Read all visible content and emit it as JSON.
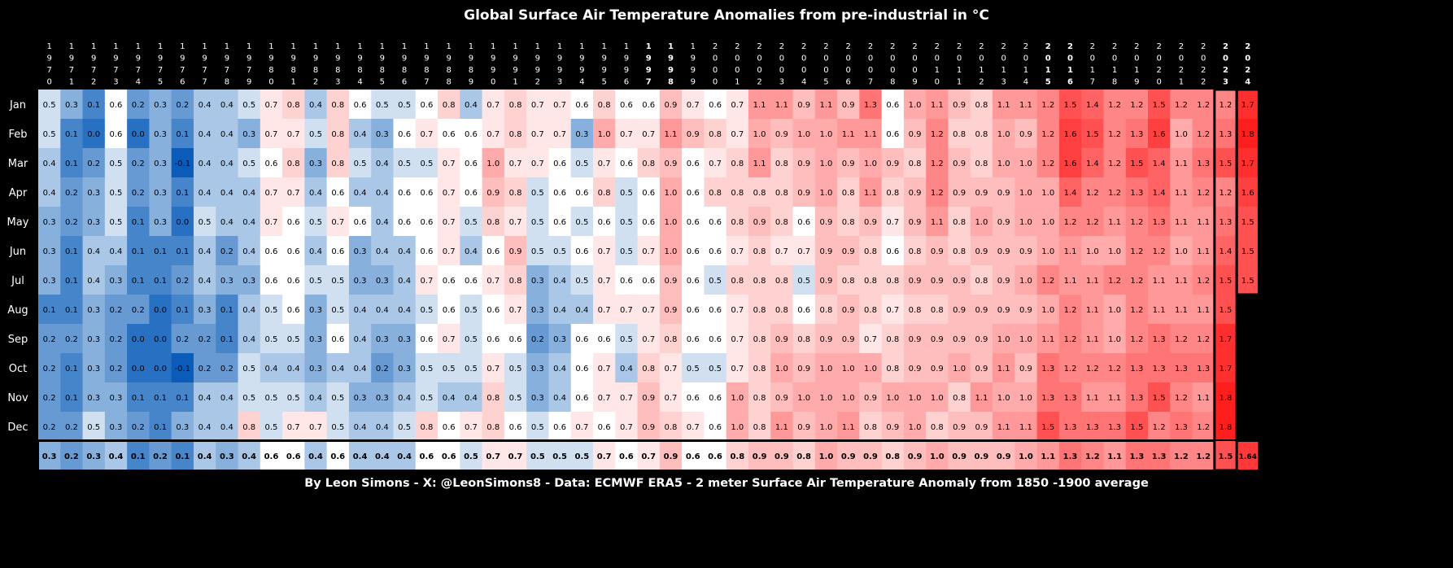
{
  "chart_data": {
    "type": "heatmap",
    "title": "Global Surface Air Temperature Anomalies from pre-industrial in °C",
    "footer": "By Leon Simons - X: @LeonSimons8 - Data: ECMWF ERA5 - 2 meter Surface Air Temperature Anomaly from 1850 -1900 average",
    "years": [
      "1970",
      "1971",
      "1972",
      "1973",
      "1974",
      "1975",
      "1976",
      "1977",
      "1978",
      "1979",
      "1980",
      "1981",
      "1982",
      "1983",
      "1984",
      "1985",
      "1986",
      "1987",
      "1988",
      "1989",
      "1990",
      "1991",
      "1992",
      "1993",
      "1994",
      "1995",
      "1996",
      "1997",
      "1998",
      "1999",
      "2000",
      "2001",
      "2002",
      "2003",
      "2004",
      "2005",
      "2006",
      "2007",
      "2008",
      "2009",
      "2010",
      "2011",
      "2012",
      "2013",
      "2014",
      "2015",
      "2016",
      "2017",
      "2018",
      "2019",
      "2020",
      "2021",
      "2022",
      "2023",
      "2024"
    ],
    "bold_years": [
      "1997",
      "1998",
      "2015",
      "2016",
      "2023",
      "2024"
    ],
    "months": [
      "Jan",
      "Feb",
      "Mar",
      "Apr",
      "May",
      "Jun",
      "Jul",
      "Aug",
      "Sep",
      "Oct",
      "Nov",
      "Dec"
    ],
    "values": [
      [
        "0.5",
        "0.3",
        "0.1",
        "0.6",
        "0.2",
        "0.3",
        "0.2",
        "0.4",
        "0.4",
        "0.5",
        "0.7",
        "0.8",
        "0.4",
        "0.8",
        "0.6",
        "0.5",
        "0.5",
        "0.6",
        "0.8",
        "0.4",
        "0.7",
        "0.8",
        "0.7",
        "0.7",
        "0.6",
        "0.8",
        "0.6",
        "0.6",
        "0.9",
        "0.7",
        "0.6",
        "0.7",
        "1.1",
        "1.1",
        "0.9",
        "1.1",
        "0.9",
        "1.3",
        "0.6",
        "1.0",
        "1.1",
        "0.9",
        "0.8",
        "1.1",
        "1.1",
        "1.2",
        "1.5",
        "1.4",
        "1.2",
        "1.2",
        "1.5",
        "1.2",
        "1.2",
        "1.2",
        "1.7"
      ],
      [
        "0.5",
        "0.1",
        "0.0",
        "0.6",
        "0.0",
        "0.3",
        "0.1",
        "0.4",
        "0.4",
        "0.3",
        "0.7",
        "0.7",
        "0.5",
        "0.8",
        "0.4",
        "0.3",
        "0.6",
        "0.7",
        "0.6",
        "0.6",
        "0.7",
        "0.8",
        "0.7",
        "0.7",
        "0.3",
        "1.0",
        "0.7",
        "0.7",
        "1.1",
        "0.9",
        "0.8",
        "0.7",
        "1.0",
        "0.9",
        "1.0",
        "1.0",
        "1.1",
        "1.1",
        "0.6",
        "0.9",
        "1.2",
        "0.8",
        "0.8",
        "1.0",
        "0.9",
        "1.2",
        "1.6",
        "1.5",
        "1.2",
        "1.3",
        "1.6",
        "1.0",
        "1.2",
        "1.3",
        "1.8"
      ],
      [
        "0.4",
        "0.1",
        "0.2",
        "0.5",
        "0.2",
        "0.3",
        "-0.1",
        "0.4",
        "0.4",
        "0.5",
        "0.6",
        "0.8",
        "0.3",
        "0.8",
        "0.5",
        "0.4",
        "0.5",
        "0.5",
        "0.7",
        "0.6",
        "1.0",
        "0.7",
        "0.7",
        "0.6",
        "0.5",
        "0.7",
        "0.6",
        "0.8",
        "0.9",
        "0.6",
        "0.7",
        "0.8",
        "1.1",
        "0.8",
        "0.9",
        "1.0",
        "0.9",
        "1.0",
        "0.9",
        "0.8",
        "1.2",
        "0.9",
        "0.8",
        "1.0",
        "1.0",
        "1.2",
        "1.6",
        "1.4",
        "1.2",
        "1.5",
        "1.4",
        "1.1",
        "1.3",
        "1.5",
        "1.7"
      ],
      [
        "0.4",
        "0.2",
        "0.3",
        "0.5",
        "0.2",
        "0.3",
        "0.1",
        "0.4",
        "0.4",
        "0.4",
        "0.7",
        "0.7",
        "0.4",
        "0.6",
        "0.4",
        "0.4",
        "0.6",
        "0.6",
        "0.7",
        "0.6",
        "0.9",
        "0.8",
        "0.5",
        "0.6",
        "0.6",
        "0.8",
        "0.5",
        "0.6",
        "1.0",
        "0.6",
        "0.8",
        "0.8",
        "0.8",
        "0.8",
        "0.9",
        "1.0",
        "0.8",
        "1.1",
        "0.8",
        "0.9",
        "1.2",
        "0.9",
        "0.9",
        "0.9",
        "1.0",
        "1.0",
        "1.4",
        "1.2",
        "1.2",
        "1.3",
        "1.4",
        "1.1",
        "1.2",
        "1.2",
        "1.6"
      ],
      [
        "0.3",
        "0.2",
        "0.3",
        "0.5",
        "0.1",
        "0.3",
        "0.0",
        "0.5",
        "0.4",
        "0.4",
        "0.7",
        "0.6",
        "0.5",
        "0.7",
        "0.6",
        "0.4",
        "0.6",
        "0.6",
        "0.7",
        "0.5",
        "0.8",
        "0.7",
        "0.5",
        "0.6",
        "0.5",
        "0.6",
        "0.5",
        "0.6",
        "1.0",
        "0.6",
        "0.6",
        "0.8",
        "0.9",
        "0.8",
        "0.6",
        "0.9",
        "0.8",
        "0.9",
        "0.7",
        "0.9",
        "1.1",
        "0.8",
        "1.0",
        "0.9",
        "1.0",
        "1.0",
        "1.2",
        "1.2",
        "1.1",
        "1.2",
        "1.3",
        "1.1",
        "1.1",
        "1.3",
        "1.5"
      ],
      [
        "0.3",
        "0.1",
        "0.4",
        "0.4",
        "0.1",
        "0.1",
        "0.1",
        "0.4",
        "0.2",
        "0.4",
        "0.6",
        "0.6",
        "0.4",
        "0.6",
        "0.3",
        "0.4",
        "0.4",
        "0.6",
        "0.7",
        "0.4",
        "0.6",
        "0.9",
        "0.5",
        "0.5",
        "0.6",
        "0.7",
        "0.5",
        "0.7",
        "1.0",
        "0.6",
        "0.6",
        "0.7",
        "0.8",
        "0.7",
        "0.7",
        "0.9",
        "0.9",
        "0.8",
        "0.6",
        "0.8",
        "0.9",
        "0.8",
        "0.9",
        "0.9",
        "0.9",
        "1.0",
        "1.1",
        "1.0",
        "1.0",
        "1.2",
        "1.2",
        "1.0",
        "1.1",
        "1.4",
        "1.5"
      ],
      [
        "0.3",
        "0.1",
        "0.4",
        "0.3",
        "0.1",
        "0.1",
        "0.2",
        "0.4",
        "0.3",
        "0.3",
        "0.6",
        "0.6",
        "0.5",
        "0.5",
        "0.3",
        "0.3",
        "0.4",
        "0.7",
        "0.6",
        "0.6",
        "0.7",
        "0.8",
        "0.3",
        "0.4",
        "0.5",
        "0.7",
        "0.6",
        "0.6",
        "0.9",
        "0.6",
        "0.5",
        "0.8",
        "0.8",
        "0.8",
        "0.5",
        "0.9",
        "0.8",
        "0.8",
        "0.8",
        "0.9",
        "0.9",
        "0.9",
        "0.8",
        "0.9",
        "1.0",
        "1.2",
        "1.1",
        "1.1",
        "1.2",
        "1.2",
        "1.1",
        "1.1",
        "1.2",
        "1.5",
        "1.5"
      ],
      [
        "0.1",
        "0.1",
        "0.3",
        "0.2",
        "0.2",
        "0.0",
        "0.1",
        "0.3",
        "0.1",
        "0.4",
        "0.5",
        "0.6",
        "0.3",
        "0.5",
        "0.4",
        "0.4",
        "0.4",
        "0.5",
        "0.6",
        "0.5",
        "0.6",
        "0.7",
        "0.3",
        "0.4",
        "0.4",
        "0.7",
        "0.7",
        "0.7",
        "0.9",
        "0.6",
        "0.6",
        "0.7",
        "0.8",
        "0.8",
        "0.6",
        "0.8",
        "0.9",
        "0.8",
        "0.7",
        "0.8",
        "0.8",
        "0.9",
        "0.9",
        "0.9",
        "0.9",
        "1.0",
        "1.2",
        "1.1",
        "1.0",
        "1.2",
        "1.1",
        "1.1",
        "1.1",
        "1.5",
        ""
      ],
      [
        "0.2",
        "0.2",
        "0.3",
        "0.2",
        "0.0",
        "0.0",
        "0.2",
        "0.2",
        "0.1",
        "0.4",
        "0.5",
        "0.5",
        "0.3",
        "0.6",
        "0.4",
        "0.3",
        "0.3",
        "0.6",
        "0.7",
        "0.5",
        "0.6",
        "0.6",
        "0.2",
        "0.3",
        "0.6",
        "0.6",
        "0.5",
        "0.7",
        "0.8",
        "0.6",
        "0.6",
        "0.7",
        "0.8",
        "0.9",
        "0.8",
        "0.9",
        "0.9",
        "0.7",
        "0.8",
        "0.9",
        "0.9",
        "0.9",
        "0.9",
        "1.0",
        "1.0",
        "1.1",
        "1.2",
        "1.1",
        "1.0",
        "1.2",
        "1.3",
        "1.2",
        "1.2",
        "1.7",
        ""
      ],
      [
        "0.2",
        "0.1",
        "0.3",
        "0.2",
        "0.0",
        "0.0",
        "-0.1",
        "0.2",
        "0.2",
        "0.5",
        "0.4",
        "0.4",
        "0.3",
        "0.4",
        "0.4",
        "0.2",
        "0.3",
        "0.5",
        "0.5",
        "0.5",
        "0.7",
        "0.5",
        "0.3",
        "0.4",
        "0.6",
        "0.7",
        "0.4",
        "0.8",
        "0.7",
        "0.5",
        "0.5",
        "0.7",
        "0.8",
        "1.0",
        "0.9",
        "1.0",
        "1.0",
        "1.0",
        "0.8",
        "0.9",
        "0.9",
        "1.0",
        "0.9",
        "1.1",
        "0.9",
        "1.3",
        "1.2",
        "1.2",
        "1.2",
        "1.3",
        "1.3",
        "1.3",
        "1.3",
        "1.7",
        ""
      ],
      [
        "0.2",
        "0.1",
        "0.3",
        "0.3",
        "0.1",
        "0.1",
        "0.1",
        "0.4",
        "0.4",
        "0.5",
        "0.5",
        "0.5",
        "0.4",
        "0.5",
        "0.3",
        "0.3",
        "0.4",
        "0.5",
        "0.4",
        "0.4",
        "0.8",
        "0.5",
        "0.3",
        "0.4",
        "0.6",
        "0.7",
        "0.7",
        "0.9",
        "0.7",
        "0.6",
        "0.6",
        "1.0",
        "0.8",
        "0.9",
        "1.0",
        "1.0",
        "1.0",
        "0.9",
        "1.0",
        "1.0",
        "1.0",
        "0.8",
        "1.1",
        "1.0",
        "1.0",
        "1.3",
        "1.3",
        "1.1",
        "1.1",
        "1.3",
        "1.5",
        "1.2",
        "1.1",
        "1.8",
        ""
      ],
      [
        "0.2",
        "0.2",
        "0.5",
        "0.3",
        "0.2",
        "0.1",
        "0.3",
        "0.4",
        "0.4",
        "0.8",
        "0.5",
        "0.7",
        "0.7",
        "0.5",
        "0.4",
        "0.4",
        "0.5",
        "0.8",
        "0.6",
        "0.7",
        "0.8",
        "0.6",
        "0.5",
        "0.6",
        "0.7",
        "0.6",
        "0.7",
        "0.9",
        "0.8",
        "0.7",
        "0.6",
        "1.0",
        "0.8",
        "1.1",
        "0.9",
        "1.0",
        "1.1",
        "0.8",
        "0.9",
        "1.0",
        "0.8",
        "0.9",
        "0.9",
        "1.1",
        "1.1",
        "1.5",
        "1.3",
        "1.3",
        "1.3",
        "1.5",
        "1.2",
        "1.3",
        "1.2",
        "1.8",
        ""
      ]
    ],
    "annual": [
      "0.3",
      "0.2",
      "0.3",
      "0.4",
      "0.1",
      "0.2",
      "0.1",
      "0.4",
      "0.3",
      "0.4",
      "0.6",
      "0.6",
      "0.4",
      "0.6",
      "0.4",
      "0.4",
      "0.4",
      "0.6",
      "0.6",
      "0.5",
      "0.7",
      "0.7",
      "0.5",
      "0.5",
      "0.5",
      "0.7",
      "0.6",
      "0.7",
      "0.9",
      "0.6",
      "0.6",
      "0.8",
      "0.9",
      "0.9",
      "0.8",
      "1.0",
      "0.9",
      "0.9",
      "0.8",
      "0.9",
      "1.0",
      "0.9",
      "0.9",
      "0.9",
      "1.0",
      "1.1",
      "1.3",
      "1.2",
      "1.1",
      "1.3",
      "1.3",
      "1.2",
      "1.2",
      "1.5",
      "1.64"
    ],
    "color_scale": {
      "min": -0.1,
      "mid": 0.6,
      "max": 1.8,
      "cold": "#0a5cb8",
      "neutral": "#ffffff",
      "warm": "#ff1e1e"
    },
    "highlight_years": [
      "2023",
      "2024"
    ],
    "highlight_color": "#000000"
  }
}
